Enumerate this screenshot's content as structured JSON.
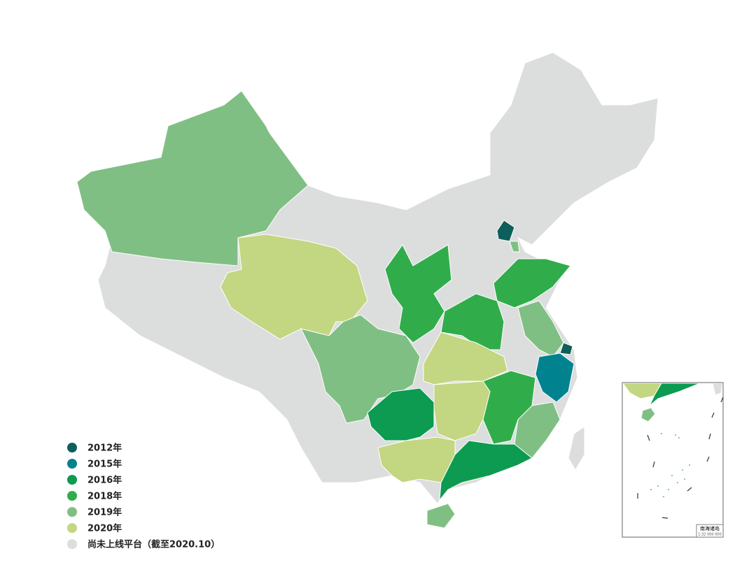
{
  "legend": {
    "items": [
      {
        "label": "2012年",
        "color": "#0d5f5b"
      },
      {
        "label": "2015年",
        "color": "#00838f"
      },
      {
        "label": "2016年",
        "color": "#0c9b50"
      },
      {
        "label": "2018年",
        "color": "#30ad4a"
      },
      {
        "label": "2019年",
        "color": "#80bf84"
      },
      {
        "label": "2020年",
        "color": "#c3d681"
      },
      {
        "label": "尚未上线平台（截至2020.10）",
        "color": "#dcdddd"
      }
    ]
  },
  "inset": {
    "title": "南海诸岛",
    "scale": "1:32 000 000"
  }
}
